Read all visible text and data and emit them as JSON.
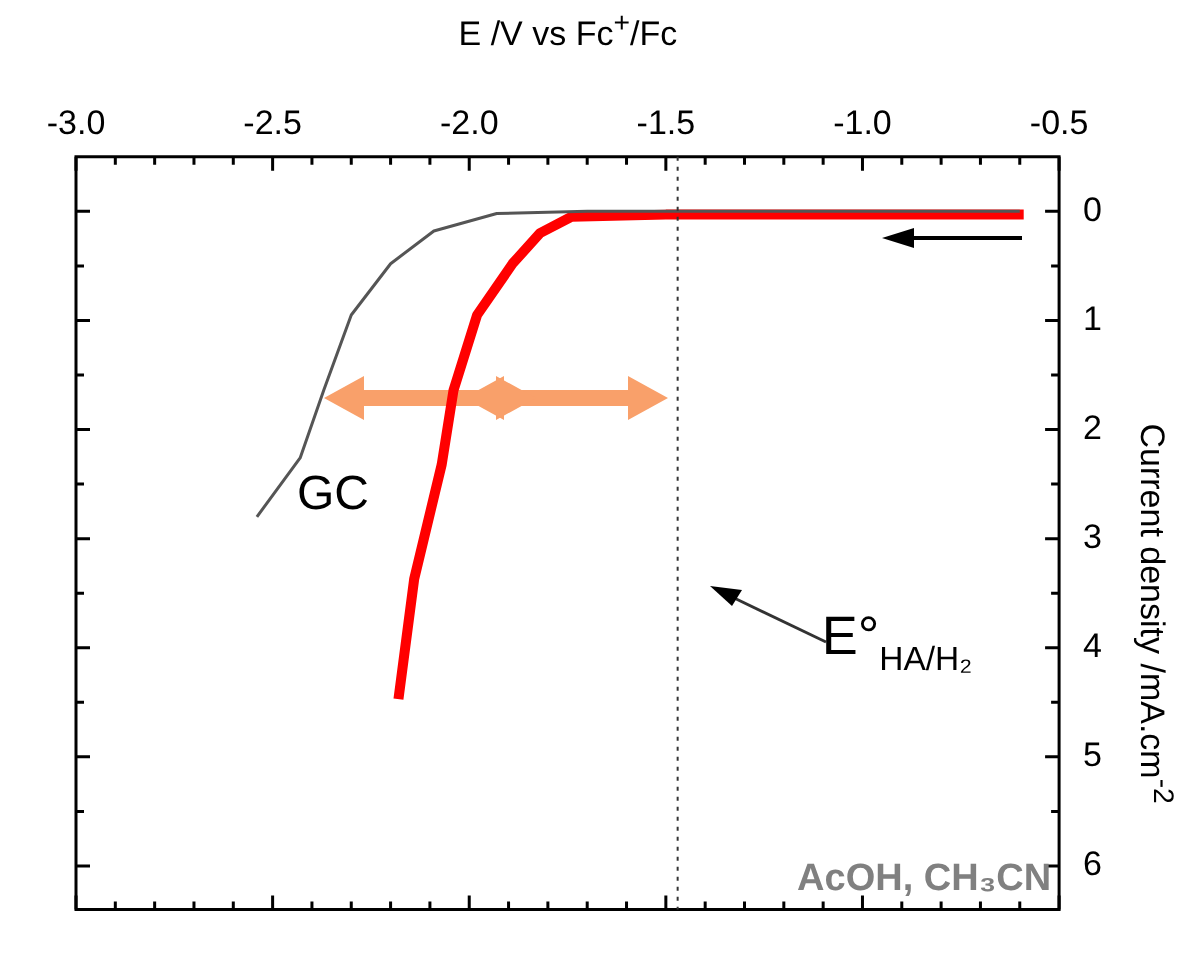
{
  "chart_data": {
    "type": "line",
    "xlabel": "E  /V vs Fc$^{+}$/Fc",
    "ylabel": "Current density /mA.cm$^{-2}$",
    "xlim": [
      -3.0,
      -0.5
    ],
    "ylim": [
      6.4,
      -0.5
    ],
    "xticks": [
      {
        "value": -3.0,
        "label": "-3.0"
      },
      {
        "value": -2.9,
        "label": null
      },
      {
        "value": -2.8,
        "label": null
      },
      {
        "value": -2.7,
        "label": null
      },
      {
        "value": -2.6,
        "label": null
      },
      {
        "value": -2.5,
        "label": "-2.5"
      },
      {
        "value": -2.4,
        "label": null
      },
      {
        "value": -2.3,
        "label": null
      },
      {
        "value": -2.2,
        "label": null
      },
      {
        "value": -2.1,
        "label": null
      },
      {
        "value": -2.0,
        "label": "-2.0"
      },
      {
        "value": -1.9,
        "label": null
      },
      {
        "value": -1.8,
        "label": null
      },
      {
        "value": -1.7,
        "label": null
      },
      {
        "value": -1.6,
        "label": null
      },
      {
        "value": -1.5,
        "label": "-1.5"
      },
      {
        "value": -1.4,
        "label": null
      },
      {
        "value": -1.3,
        "label": null
      },
      {
        "value": -1.2,
        "label": null
      },
      {
        "value": -1.1,
        "label": null
      },
      {
        "value": -1.0,
        "label": "-1.0"
      },
      {
        "value": -0.9,
        "label": null
      },
      {
        "value": -0.8,
        "label": null
      },
      {
        "value": -0.7,
        "label": null
      },
      {
        "value": -0.6,
        "label": null
      },
      {
        "value": -0.5,
        "label": "-0.5"
      }
    ],
    "yticks": [
      0,
      {
        "value": 0.5,
        "label": null
      },
      1,
      {
        "value": 1.5,
        "label": null
      },
      2,
      {
        "value": 2.5,
        "label": null
      },
      3,
      {
        "value": 3.5,
        "label": null
      },
      4,
      {
        "value": 4.5,
        "label": null
      },
      5,
      {
        "value": 5.5,
        "label": null
      },
      6
    ],
    "series": [
      {
        "color": "#ff0000",
        "x": [
          -2.18,
          -2.14,
          -2.07,
          -2.04,
          -1.98,
          -1.89,
          -1.82,
          -1.74,
          -1.5,
          -1.0,
          -0.59
        ],
        "values": [
          4.47,
          3.37,
          2.32,
          1.64,
          0.95,
          0.48,
          0.2,
          0.05,
          0.03,
          0.03,
          0.03
        ]
      },
      {
        "name": "GC",
        "color": "#555555",
        "x": [
          -2.54,
          -2.43,
          -2.37,
          -2.3,
          -2.2,
          -2.09,
          -1.93,
          -1.7,
          -1.0,
          -0.6
        ],
        "values": [
          2.8,
          2.26,
          1.64,
          0.95,
          0.48,
          0.18,
          0.02,
          0.0,
          0.0,
          0.0
        ]
      }
    ],
    "marker": "none",
    "line_style": "solid",
    "legend": false,
    "grid": false,
    "ref_lines": [
      {
        "axis": "x",
        "value": -1.47,
        "label": "E°$_{HA/H₂}$",
        "color": "#333333",
        "line_style": "dotted"
      }
    ],
    "annotations": [
      "AcOH, CH₃CN"
    ]
  }
}
